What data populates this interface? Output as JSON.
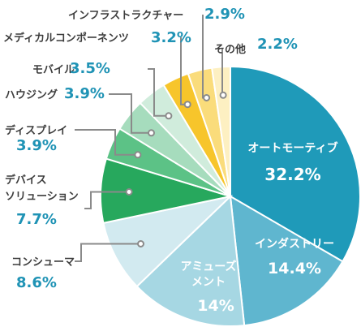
{
  "chart_data": {
    "type": "pie",
    "title": "",
    "slices": [
      {
        "label": "オートモーティブ",
        "value": 32.2,
        "display": "32.2%",
        "color": "#1f9ab9"
      },
      {
        "label": "インダストリー",
        "value": 14.4,
        "display": "14.4%",
        "color": "#5fb6cf"
      },
      {
        "label": "アミューズメント",
        "value": 14,
        "display": "14%",
        "color": "#a6d7e3"
      },
      {
        "label": "コンシューマ",
        "value": 8.6,
        "display": "8.6%",
        "color": "#d2eaf0"
      },
      {
        "label": "デバイスソリューション",
        "value": 7.7,
        "display": "7.7%",
        "color": "#27a85d"
      },
      {
        "label": "ディスプレイ",
        "value": 3.9,
        "display": "3.9%",
        "color": "#5cc286"
      },
      {
        "label": "ハウジング",
        "value": 3.9,
        "display": "3.9%",
        "color": "#a6dcbd"
      },
      {
        "label": "モバイル",
        "value": 3.5,
        "display": "3.5%",
        "color": "#d0ecdc"
      },
      {
        "label": "メディカルコンポーネンツ",
        "value": 3.2,
        "display": "3.2%",
        "color": "#f7c52b"
      },
      {
        "label": "インフラストラクチャー",
        "value": 2.9,
        "display": "2.9%",
        "color": "#fadc7b"
      },
      {
        "label": "その他",
        "value": 2.2,
        "display": "2.2%",
        "color": "#fdf0c2"
      }
    ]
  },
  "colors": {
    "label_text": "#3d3d3d",
    "value_text": "#1f93b5",
    "leader_line": "#8a8a8a"
  }
}
